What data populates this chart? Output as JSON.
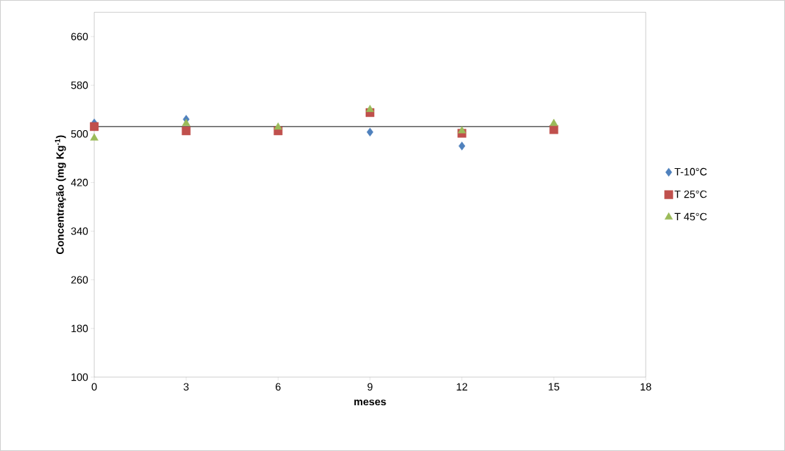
{
  "chart_data": {
    "type": "scatter",
    "xlabel": "meses",
    "ylabel": "Concentração (mg Kg$^{-1}$)",
    "x": [
      0,
      3,
      6,
      9,
      12,
      15
    ],
    "series": [
      {
        "name": "T-10°C",
        "color": "#4f81bd",
        "marker": "diamond",
        "values": [
          518,
          524,
          null,
          503,
          480,
          null
        ]
      },
      {
        "name": "T 25°C",
        "color": "#c0504d",
        "marker": "square",
        "values": [
          512,
          505,
          505,
          535,
          501,
          507
        ]
      },
      {
        "name": "T 45°C",
        "color": "#9bbb59",
        "marker": "triangle",
        "values": [
          493,
          517,
          511,
          540,
          505,
          517
        ]
      },
      {
        "type": "line",
        "color": "#000000",
        "marker": "none",
        "x": [
          0,
          15
        ],
        "values": [
          512,
          512
        ]
      }
    ],
    "xlim": [
      0,
      18
    ],
    "xticks": [
      0,
      3,
      6,
      9,
      12,
      15,
      18
    ],
    "ylim": [
      100,
      700
    ],
    "yticks": [
      100,
      180,
      260,
      340,
      420,
      500,
      580,
      660
    ],
    "grid": false,
    "legend": "right"
  }
}
